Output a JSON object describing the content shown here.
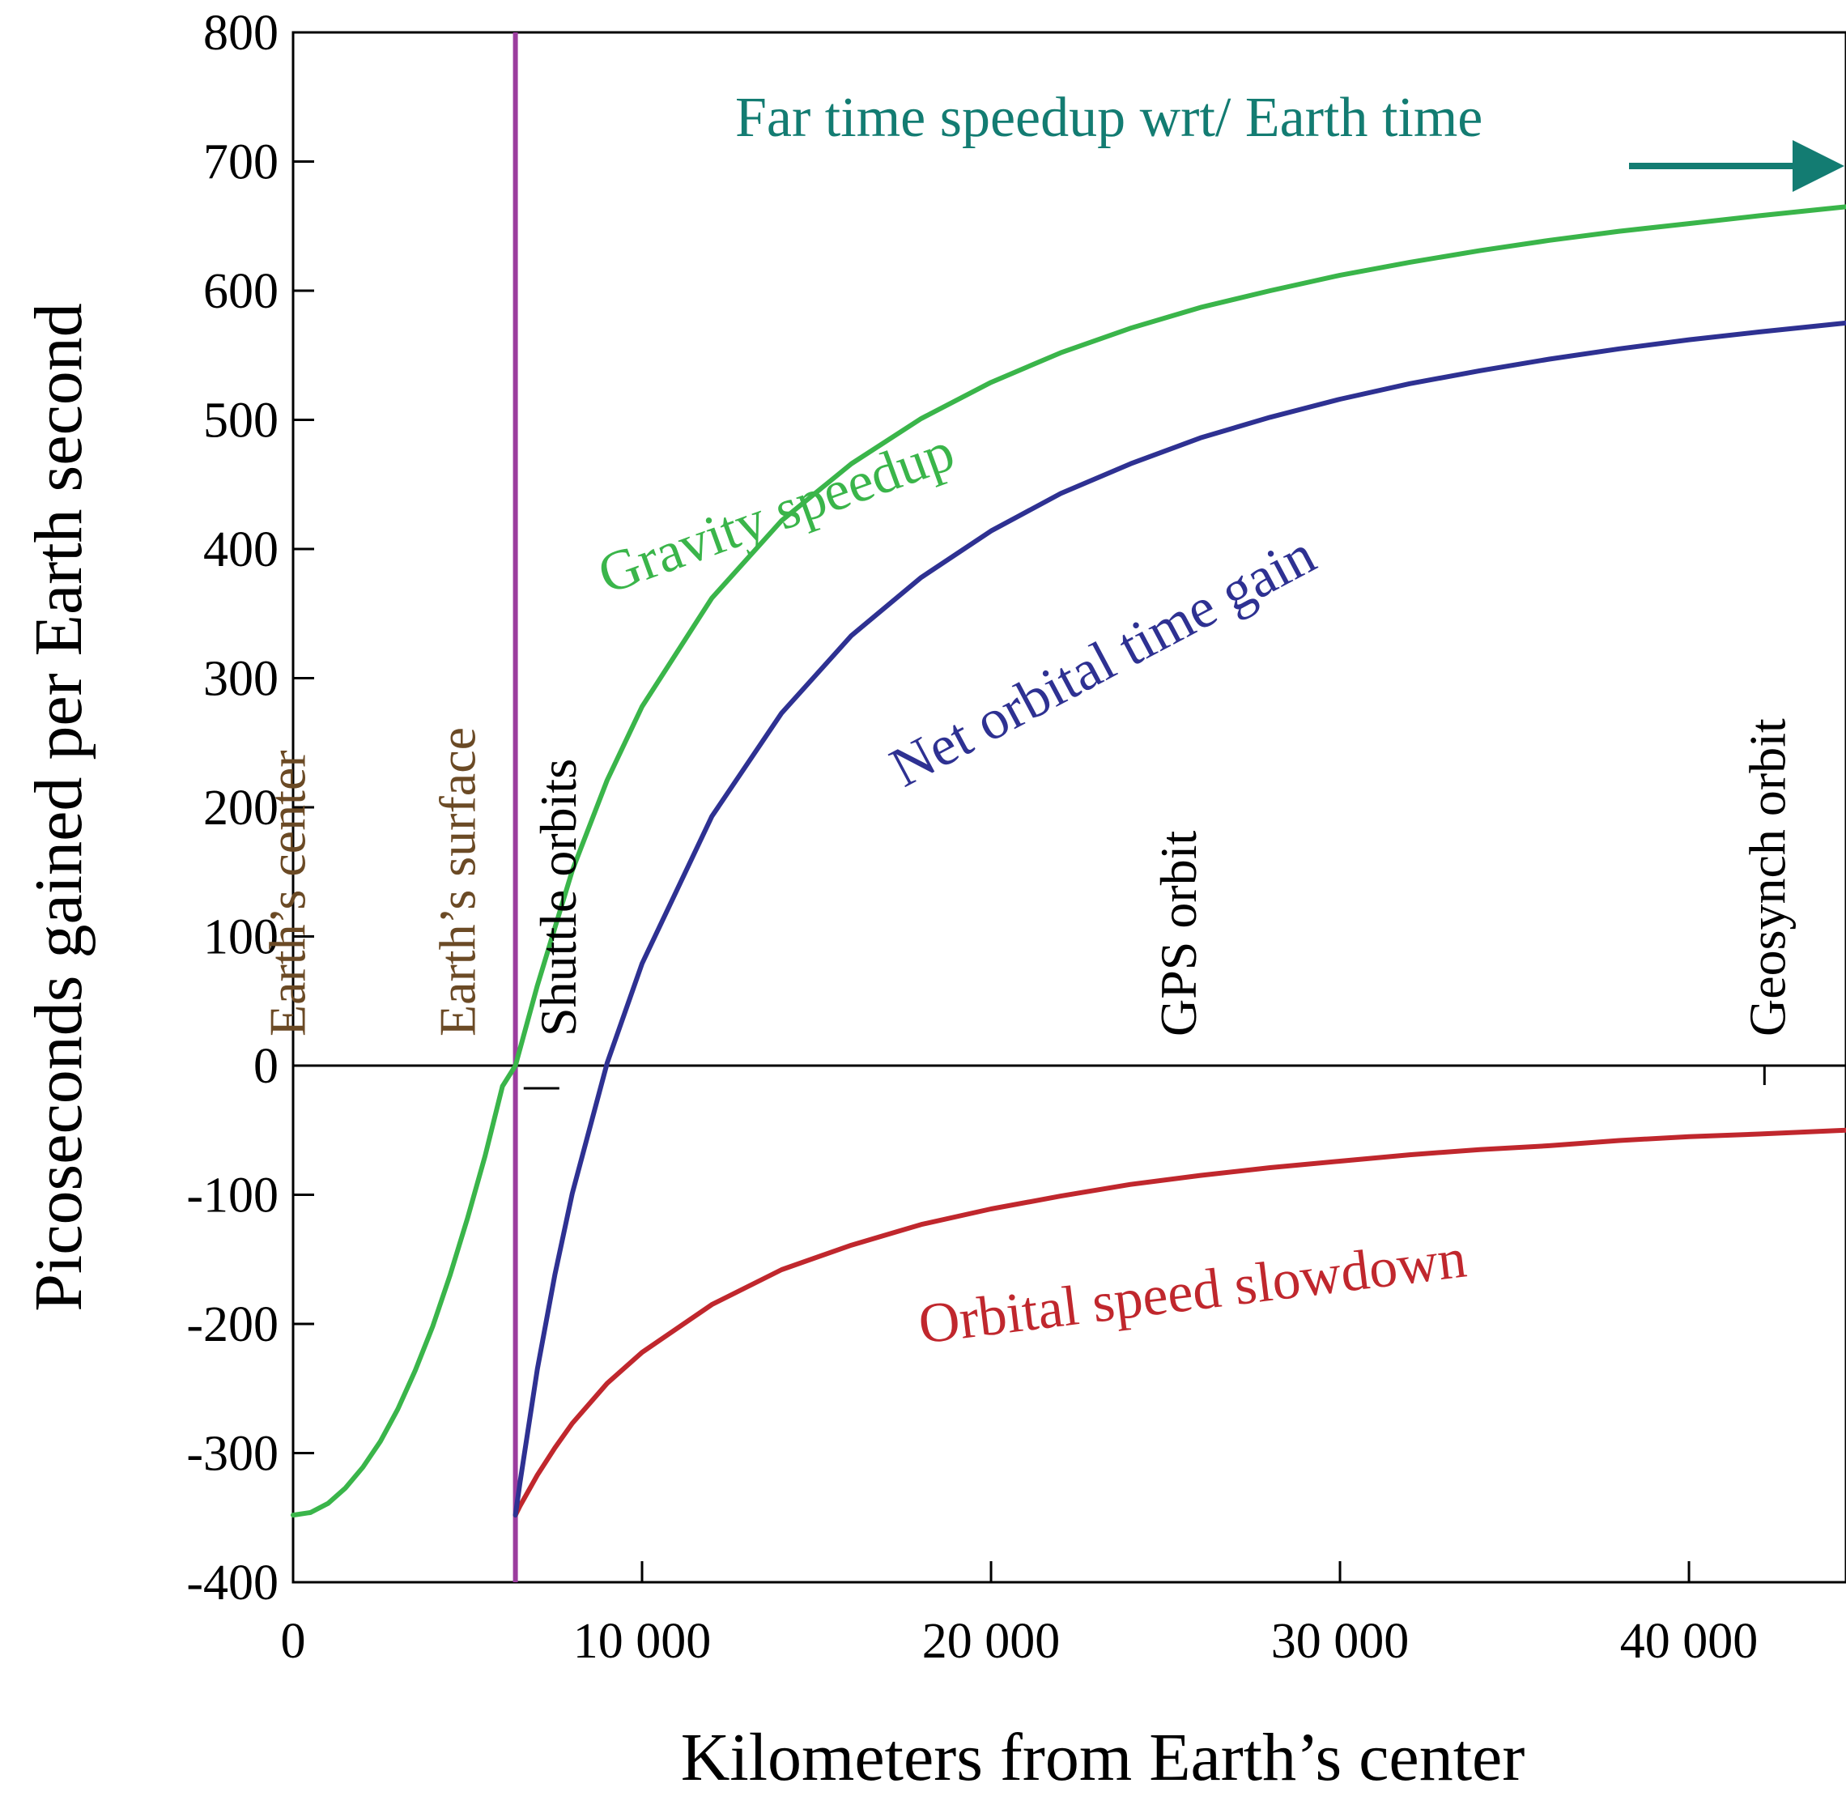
{
  "chart_data": {
    "type": "line",
    "xlabel": "Kilometers from Earth’s center",
    "ylabel": "Picoseconds gained per Earth second",
    "xlim": [
      0,
      44500
    ],
    "ylim": [
      -400,
      800
    ],
    "x_ticks": [
      0,
      10000,
      20000,
      30000,
      40000
    ],
    "x_tick_labels": [
      "0",
      "10 000",
      "20 000",
      "30 000",
      "40 000"
    ],
    "y_ticks": [
      -400,
      -300,
      -200,
      -100,
      0,
      100,
      200,
      300,
      400,
      500,
      600,
      700,
      800
    ],
    "y_tick_labels": [
      "-400",
      "-300",
      "-200",
      "-100",
      "0",
      "100",
      "200",
      "300",
      "400",
      "500",
      "600",
      "700",
      "800"
    ],
    "grid": false,
    "header": {
      "text": "Far time speedup wrt/ Earth time",
      "color": "#137c72"
    },
    "markers": [
      {
        "label": "Earth’s center",
        "x": 1500,
        "color": "#6b4a25"
      },
      {
        "label": "Earth’s surface",
        "x": 6371,
        "color": "#6b4a25",
        "line_color": "#9b3d9e"
      },
      {
        "label": "Shuttle orbits",
        "x": 6700,
        "color": "#000000"
      },
      {
        "label": "GPS orbit",
        "x": 26560,
        "color": "#000000"
      },
      {
        "label": "Geosynch orbit",
        "x": 42164,
        "color": "#000000"
      }
    ],
    "series": [
      {
        "name": "Gravity speedup",
        "color": "#3ab54a",
        "x": [
          0,
          500,
          1000,
          1500,
          2000,
          2500,
          3000,
          3500,
          4000,
          4500,
          5000,
          5500,
          6000,
          6371,
          7000,
          8000,
          9000,
          10000,
          12000,
          14000,
          16000,
          18000,
          20000,
          22000,
          24000,
          26000,
          28000,
          30000,
          32000,
          34000,
          36000,
          38000,
          40000,
          42000,
          44500
        ],
        "values": [
          -348,
          -346,
          -339,
          -327,
          -311,
          -291,
          -266,
          -236,
          -202,
          -162,
          -118,
          -70,
          -16,
          0,
          62,
          151,
          221,
          278,
          362,
          422,
          466,
          501,
          529,
          552,
          571,
          587,
          600,
          612,
          622,
          631,
          639,
          646,
          652,
          658,
          665
        ]
      },
      {
        "name": "Orbital speed slowdown",
        "color": "#c0272d",
        "x": [
          6371,
          6500,
          7000,
          7500,
          8000,
          9000,
          10000,
          12000,
          14000,
          16000,
          18000,
          20000,
          22000,
          24000,
          26000,
          28000,
          30000,
          32000,
          34000,
          36000,
          38000,
          40000,
          42000,
          44500
        ],
        "values": [
          -348,
          -341,
          -317,
          -296,
          -277,
          -246,
          -222,
          -185,
          -158,
          -139,
          -123,
          -111,
          -101,
          -92,
          -85,
          -79,
          -74,
          -69,
          -65,
          -62,
          -58,
          -55,
          -53,
          -50
        ]
      },
      {
        "name": "Net orbital time gain",
        "color": "#2e3192",
        "x": [
          6371,
          6500,
          7000,
          7500,
          8000,
          9000,
          10000,
          12000,
          14000,
          16000,
          18000,
          20000,
          22000,
          24000,
          26000,
          28000,
          30000,
          32000,
          34000,
          36000,
          38000,
          40000,
          42000,
          44500
        ],
        "values": [
          -348,
          -323,
          -235,
          -162,
          -99,
          2,
          79,
          193,
          273,
          333,
          378,
          414,
          443,
          466,
          486,
          502,
          516,
          528,
          538,
          547,
          555,
          562,
          568,
          575
        ]
      }
    ]
  }
}
